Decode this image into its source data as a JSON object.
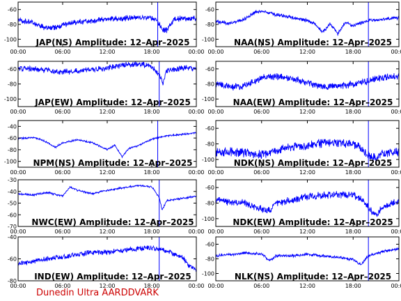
{
  "footer": "Dunedin Ultra AARDDVARK",
  "colors": {
    "signal": "#0000ff",
    "axis": "#000000",
    "footer": "#cc0000",
    "marker": "#0000ff"
  },
  "chart_data": [
    {
      "type": "line",
      "title": "JAP(NS) Amplitude: 12–Apr–2025",
      "ylim": [
        -110,
        -50
      ],
      "yticks": [
        -100,
        -80,
        -60
      ],
      "x_ticks": [
        "00:00",
        "06:00",
        "12:00",
        "18:00",
        "00:00"
      ],
      "marker_hour": 18.8,
      "band": 4,
      "series": [
        {
          "x": [
            0,
            2,
            4,
            6,
            8,
            10,
            12,
            14,
            16,
            18,
            18.8,
            19.3,
            20,
            21,
            22,
            24
          ],
          "values": [
            -74,
            -78,
            -86,
            -81,
            -77,
            -75,
            -73,
            -72,
            -71,
            -71,
            -76,
            -86,
            -88,
            -73,
            -72,
            -72
          ]
        }
      ]
    },
    {
      "type": "line",
      "title": "NAA(NS) Amplitude: 12–Apr–2025",
      "ylim": [
        -110,
        -50
      ],
      "yticks": [
        -100,
        -80,
        -60
      ],
      "x_ticks": [
        "00:00",
        "06:00",
        "12:00",
        "18:00",
        "00:00"
      ],
      "marker_hour": 20.0,
      "band": 2.5,
      "series": [
        {
          "x": [
            0,
            2,
            4,
            5,
            6,
            8,
            10,
            12,
            13,
            14,
            15,
            16,
            17,
            18,
            20,
            22,
            24
          ],
          "values": [
            -76,
            -79,
            -72,
            -64,
            -62,
            -67,
            -71,
            -75,
            -80,
            -91,
            -79,
            -93,
            -77,
            -82,
            -75,
            -73,
            -71
          ]
        }
      ]
    },
    {
      "type": "line",
      "title": "JAP(EW) Amplitude: 12–Apr–2025",
      "ylim": [
        -110,
        -50
      ],
      "yticks": [
        -100,
        -80,
        -60
      ],
      "x_ticks": [
        "00:00",
        "06:00",
        "12:00",
        "18:00",
        "00:00"
      ],
      "marker_hour": 19.0,
      "band": 4,
      "series": [
        {
          "x": [
            0,
            2,
            4,
            6,
            8,
            10,
            12,
            14,
            16,
            18,
            19,
            19.5,
            20,
            22,
            24
          ],
          "values": [
            -59,
            -60,
            -62,
            -64,
            -63,
            -61,
            -59,
            -55,
            -53,
            -57,
            -68,
            -80,
            -62,
            -59,
            -59
          ]
        }
      ]
    },
    {
      "type": "line",
      "title": "NAA(EW) Amplitude: 12–Apr–2025",
      "ylim": [
        -110,
        -50
      ],
      "yticks": [
        -100,
        -80,
        -60
      ],
      "x_ticks": [
        "00:00",
        "06:00",
        "12:00",
        "18:00",
        "00:00"
      ],
      "marker_hour": 20.0,
      "band": 5,
      "series": [
        {
          "x": [
            0,
            2,
            4,
            6,
            8,
            10,
            12,
            14,
            16,
            18,
            20,
            22,
            24
          ],
          "values": [
            -80,
            -84,
            -82,
            -72,
            -70,
            -73,
            -78,
            -84,
            -83,
            -80,
            -76,
            -71,
            -70
          ]
        }
      ]
    },
    {
      "type": "line",
      "title": "NPM(NS) Amplitude: 12–Apr–2025",
      "ylim": [
        -110,
        -30
      ],
      "yticks": [
        -100,
        -80,
        -60,
        -40
      ],
      "x_ticks": [
        "00:00",
        "06:00",
        "12:00",
        "18:00",
        "00:00"
      ],
      "marker_hour": 18.8,
      "band": 1.5,
      "series": [
        {
          "x": [
            0,
            2,
            3,
            4,
            5,
            6,
            8,
            10,
            12,
            13,
            14,
            15,
            16,
            18,
            20,
            22,
            24
          ],
          "values": [
            -61,
            -59,
            -62,
            -68,
            -76,
            -68,
            -63,
            -68,
            -80,
            -72,
            -92,
            -77,
            -74,
            -62,
            -56,
            -54,
            -51
          ]
        }
      ]
    },
    {
      "type": "line",
      "title": "NDK(NS) Amplitude: 12–Apr–2025",
      "ylim": [
        -110,
        -50
      ],
      "yticks": [
        -100,
        -80,
        -60
      ],
      "x_ticks": [
        "00:00",
        "06:00",
        "12:00",
        "18:00",
        "00:00"
      ],
      "marker_hour": 20.0,
      "band": 6,
      "series": [
        {
          "x": [
            0,
            2,
            4,
            6,
            8,
            10,
            12,
            14,
            16,
            18,
            19,
            20,
            21,
            22,
            24
          ],
          "values": [
            -91,
            -90,
            -92,
            -94,
            -88,
            -84,
            -82,
            -79,
            -78,
            -80,
            -86,
            -94,
            -98,
            -92,
            -90
          ]
        }
      ]
    },
    {
      "type": "line",
      "title": "NWC(EW) Amplitude: 12–Apr–2025",
      "ylim": [
        -70,
        -30
      ],
      "yticks": [
        -70,
        -60,
        -50,
        -40,
        -30
      ],
      "x_ticks": [
        "00:00",
        "06:00",
        "12:00",
        "18:00",
        "00:00"
      ],
      "marker_hour": 19.0,
      "band": 0.8,
      "series": [
        {
          "x": [
            0,
            2,
            4,
            6,
            7,
            8,
            10,
            12,
            14,
            16,
            18,
            19,
            19.4,
            20,
            22,
            23,
            24
          ],
          "values": [
            -42,
            -43,
            -41,
            -44,
            -36,
            -39,
            -42,
            -39,
            -37,
            -35,
            -36,
            -45,
            -56,
            -48,
            -46,
            -45,
            -44
          ]
        }
      ]
    },
    {
      "type": "line",
      "title": "NDK(EW) Amplitude: 12–Apr–2025",
      "ylim": [
        -110,
        -50
      ],
      "yticks": [
        -100,
        -80,
        -60
      ],
      "x_ticks": [
        "00:00",
        "06:00",
        "12:00",
        "18:00",
        "00:00"
      ],
      "marker_hour": 20.0,
      "band": 5,
      "series": [
        {
          "x": [
            0,
            2,
            4,
            6,
            7,
            8,
            10,
            12,
            14,
            16,
            18,
            19,
            20,
            21,
            22,
            24
          ],
          "values": [
            -76,
            -79,
            -80,
            -88,
            -90,
            -80,
            -76,
            -72,
            -70,
            -69,
            -70,
            -74,
            -86,
            -95,
            -84,
            -78
          ]
        }
      ]
    },
    {
      "type": "line",
      "title": "IND(EW) Amplitude: 12–Apr–2025",
      "ylim": [
        -80,
        -40
      ],
      "yticks": [
        -80,
        -60,
        -40
      ],
      "x_ticks": [
        "00:00",
        "06:00",
        "12:00",
        "18:00",
        "00:00"
      ],
      "marker_hour": 19.0,
      "band": 2.5,
      "series": [
        {
          "x": [
            0,
            2,
            4,
            6,
            8,
            10,
            12,
            14,
            16,
            18,
            19,
            20,
            22,
            23,
            24
          ],
          "values": [
            -65,
            -62,
            -60,
            -58,
            -56,
            -54,
            -54,
            -52,
            -51,
            -50,
            -51,
            -53,
            -58,
            -66,
            -70
          ]
        }
      ]
    },
    {
      "type": "line",
      "title": "NLK(NS) Amplitude: 12–Apr–2025",
      "ylim": [
        -110,
        -50
      ],
      "yticks": [
        -100,
        -80,
        -60
      ],
      "x_ticks": [
        "00:00",
        "06:00",
        "12:00",
        "18:00",
        "00:00"
      ],
      "marker_hour": 20.0,
      "band": 2,
      "series": [
        {
          "x": [
            0,
            2,
            4,
            6,
            7,
            8,
            10,
            12,
            14,
            16,
            18,
            19,
            20,
            22,
            24
          ],
          "values": [
            -76,
            -74,
            -72,
            -73,
            -82,
            -76,
            -76,
            -74,
            -76,
            -78,
            -81,
            -88,
            -76,
            -70,
            -66
          ]
        }
      ]
    }
  ]
}
